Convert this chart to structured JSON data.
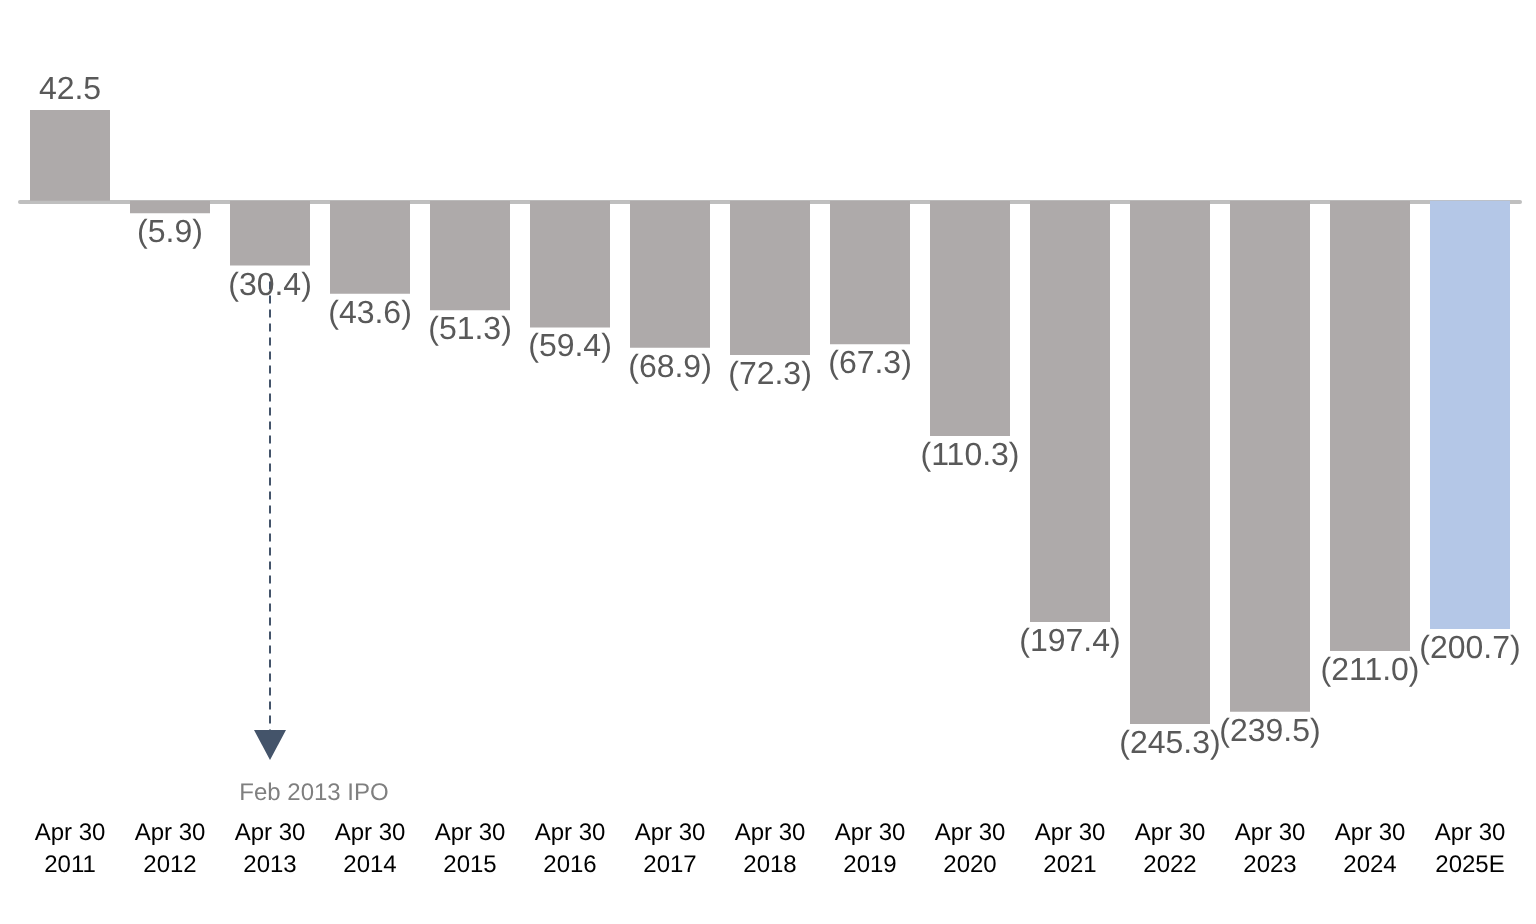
{
  "chart_data": {
    "type": "bar",
    "categories": [
      "Apr 30\n2011",
      "Apr 30\n2012",
      "Apr 30\n2013",
      "Apr 30\n2014",
      "Apr 30\n2015",
      "Apr 30\n2016",
      "Apr 30\n2017",
      "Apr 30\n2018",
      "Apr 30\n2019",
      "Apr 30\n2020",
      "Apr 30\n2021",
      "Apr 30\n2022",
      "Apr 30\n2023",
      "Apr 30\n2024",
      "Apr 30\n2025E"
    ],
    "values": [
      42.5,
      -5.9,
      -30.4,
      -43.6,
      -51.3,
      -59.4,
      -68.9,
      -72.3,
      -67.3,
      -110.3,
      -197.4,
      -245.3,
      -239.5,
      -211.0,
      -200.7
    ],
    "value_labels": [
      "42.5",
      "(5.9)",
      "(30.4)",
      "(43.6)",
      "(51.3)",
      "(59.4)",
      "(68.9)",
      "(72.3)",
      "(67.3)",
      "(110.3)",
      "(197.4)",
      "(245.3)",
      "(239.5)",
      "(211.0)",
      "(200.7)"
    ],
    "colors": [
      "#aeaaaa",
      "#aeaaaa",
      "#aeaaaa",
      "#aeaaaa",
      "#aeaaaa",
      "#aeaaaa",
      "#aeaaaa",
      "#aeaaaa",
      "#aeaaaa",
      "#aeaaaa",
      "#aeaaaa",
      "#aeaaaa",
      "#aeaaaa",
      "#aeaaaa",
      "#b4c7e7"
    ],
    "annotations": [
      "Feb 2013 IPO"
    ]
  }
}
